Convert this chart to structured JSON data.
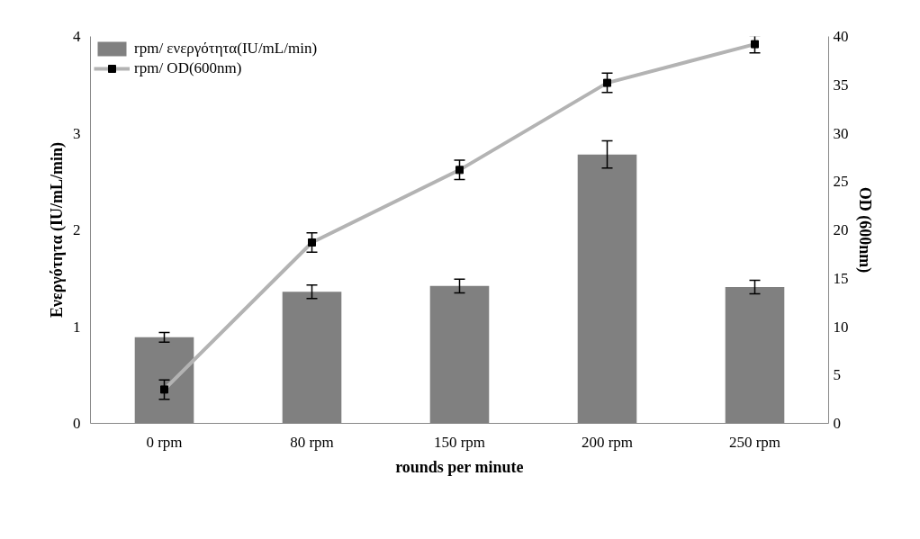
{
  "chart_data": {
    "type": "bar",
    "xlabel": "rounds per minute",
    "ylabel": "Ενεργότητα (IU/mL/min)",
    "y2label": "OD (600nm)",
    "categories": [
      "0 rpm",
      "80 rpm",
      "150 rpm",
      "200 rpm",
      "250 rpm"
    ],
    "series": [
      {
        "name": "rpm/ ενεργότητα(IU/mL/min)",
        "color": "#808080",
        "values": [
          0.89,
          1.36,
          1.42,
          2.78,
          1.41
        ],
        "errors": [
          0.05,
          0.07,
          0.07,
          0.14,
          0.07
        ]
      },
      {
        "name": "rpm/ OD(600nm)",
        "type": "line",
        "axis": "y2",
        "color": "#b3b3b3",
        "marker": "square",
        "values": [
          3.5,
          18.7,
          26.2,
          35.2,
          39.2
        ],
        "errors": [
          1.0,
          1.0,
          1.0,
          1.0,
          0.9
        ]
      }
    ],
    "ylim": [
      0,
      4
    ],
    "yticks": [
      0,
      1,
      2,
      3,
      4
    ],
    "y2lim": [
      0,
      40
    ],
    "y2ticks": [
      0,
      5,
      10,
      15,
      20,
      25,
      30,
      35,
      40
    ],
    "grid": false,
    "legend": "top left"
  }
}
